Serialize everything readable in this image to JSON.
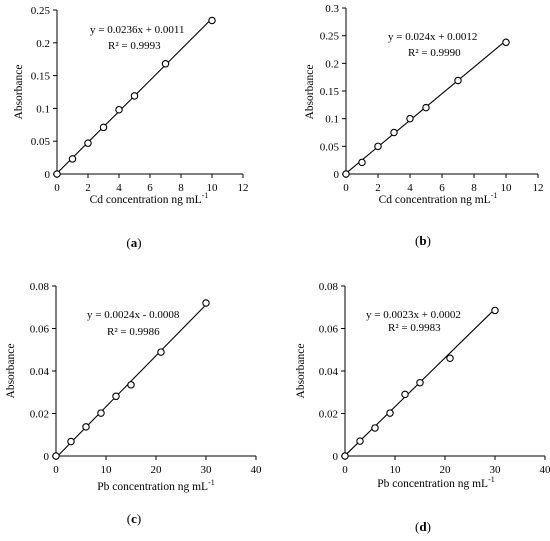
{
  "chart_data": [
    {
      "type": "scatter",
      "panel_label": "(a)",
      "xlabel": "Cd concentration ng mL",
      "xlabel_sup": "-1",
      "ylabel": "Absorbance",
      "xlim": [
        0,
        12
      ],
      "ylim": [
        0,
        0.25
      ],
      "xticks": [
        0,
        2,
        4,
        6,
        8,
        10,
        12
      ],
      "yticks": [
        0,
        0.05,
        0.1,
        0.15,
        0.2,
        0.25
      ],
      "x": [
        0,
        1,
        2,
        3,
        4,
        5,
        7,
        10
      ],
      "y": [
        0,
        0.023,
        0.047,
        0.071,
        0.098,
        0.119,
        0.168,
        0.234
      ],
      "trendline": {
        "slope": 0.0236,
        "intercept": 0.0011
      },
      "equation": "y = 0.0236x + 0.0011",
      "r2": "R² = 0.9993"
    },
    {
      "type": "scatter",
      "panel_label": "(b)",
      "xlabel": "Cd concentration ng mL",
      "xlabel_sup": "-1",
      "ylabel": "Absorbance",
      "xlim": [
        0,
        12
      ],
      "ylim": [
        0,
        0.3
      ],
      "xticks": [
        0,
        2,
        4,
        6,
        8,
        10,
        12
      ],
      "yticks": [
        0,
        0.05,
        0.1,
        0.15,
        0.2,
        0.25,
        0.3
      ],
      "x": [
        0,
        1,
        2,
        3,
        4,
        5,
        7,
        10
      ],
      "y": [
        0,
        0.021,
        0.05,
        0.075,
        0.1,
        0.12,
        0.169,
        0.238
      ],
      "trendline": {
        "slope": 0.024,
        "intercept": 0.0012
      },
      "equation": "y = 0.024x + 0.0012",
      "r2": "R² = 0.9990"
    },
    {
      "type": "scatter",
      "panel_label": "(c)",
      "xlabel": "Pb concentration ng mL",
      "xlabel_sup": "-1",
      "ylabel": "Absorbance",
      "xlim": [
        0,
        40
      ],
      "ylim": [
        0,
        0.08
      ],
      "xticks": [
        0,
        10,
        20,
        30,
        40
      ],
      "yticks": [
        0,
        0.02,
        0.04,
        0.06,
        0.08
      ],
      "x": [
        0,
        3,
        6,
        9,
        12,
        15,
        21,
        30
      ],
      "y": [
        0,
        0.0068,
        0.0137,
        0.0202,
        0.0281,
        0.0335,
        0.0489,
        0.072
      ],
      "trendline": {
        "slope": 0.0024,
        "intercept": -0.0008
      },
      "equation": "y = 0.0024x - 0.0008",
      "r2": "R² = 0.9986"
    },
    {
      "type": "scatter",
      "panel_label": "(d)",
      "xlabel": "Pb concentration ng mL",
      "xlabel_sup": "-1",
      "ylabel": "Absorbance",
      "xlim": [
        0,
        40
      ],
      "ylim": [
        0,
        0.08
      ],
      "xticks": [
        0,
        10,
        20,
        30,
        40
      ],
      "yticks": [
        0,
        0.02,
        0.04,
        0.06,
        0.08
      ],
      "x": [
        0,
        3,
        6,
        9,
        12,
        15,
        21,
        30
      ],
      "y": [
        0,
        0.007,
        0.0132,
        0.0202,
        0.029,
        0.0345,
        0.046,
        0.0685
      ],
      "trendline": {
        "slope": 0.0023,
        "intercept": 0.0002
      },
      "equation": "y = 0.0023x + 0.0002",
      "r2": "R² = 0.9983"
    }
  ]
}
